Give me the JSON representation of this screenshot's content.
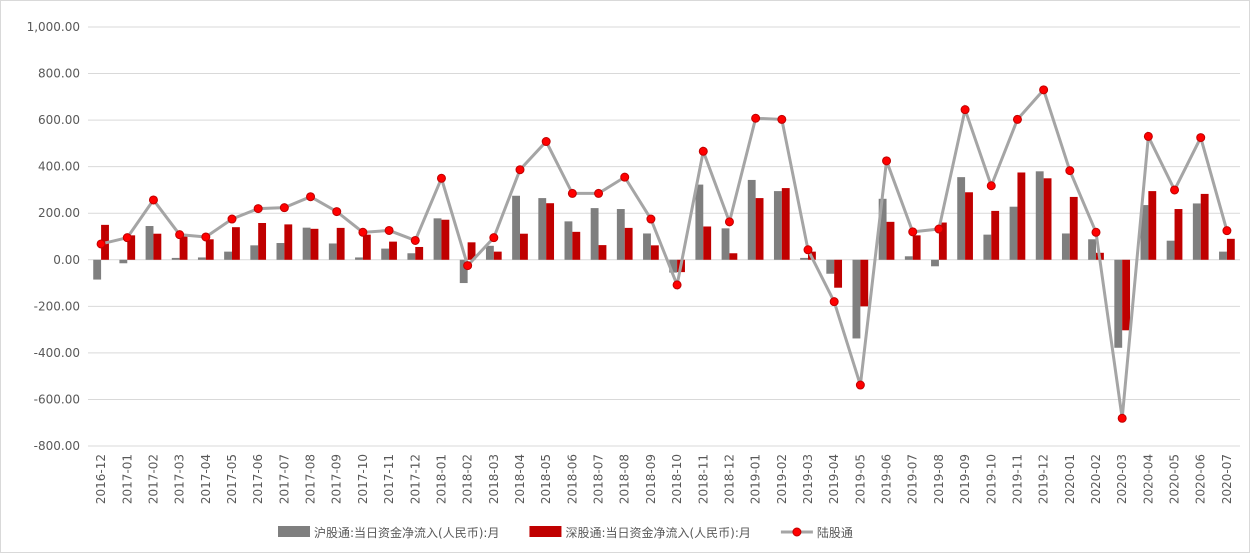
{
  "chart_data": {
    "type": "bar-line",
    "categories": [
      "2016-12",
      "2017-01",
      "2017-02",
      "2017-03",
      "2017-04",
      "2017-05",
      "2017-06",
      "2017-07",
      "2017-08",
      "2017-09",
      "2017-10",
      "2017-11",
      "2017-12",
      "2018-01",
      "2018-02",
      "2018-03",
      "2018-04",
      "2018-05",
      "2018-06",
      "2018-07",
      "2018-08",
      "2018-09",
      "2018-10",
      "2018-11",
      "2018-12",
      "2019-01",
      "2019-02",
      "2019-03",
      "2019-04",
      "2019-05",
      "2019-06",
      "2019-07",
      "2019-08",
      "2019-09",
      "2019-10",
      "2019-11",
      "2019-12",
      "2020-01",
      "2020-02",
      "2020-03",
      "2020-04",
      "2020-05",
      "2020-06",
      "2020-07"
    ],
    "series": [
      {
        "name": "沪股通:当日资金净流入(人民币):月",
        "type": "bar",
        "color": "#7f7f7f",
        "values": [
          -85,
          -15,
          145,
          8,
          10,
          35,
          62,
          72,
          138,
          70,
          10,
          48,
          28,
          178,
          -100,
          60,
          275,
          265,
          165,
          222,
          218,
          113,
          -55,
          323,
          135,
          343,
          295,
          8,
          -60,
          -338,
          262,
          15,
          -28,
          355,
          108,
          228,
          380,
          113,
          88,
          -378,
          235,
          82,
          242,
          35
        ]
      },
      {
        "name": "深股通:当日资金净流入(人民币):月",
        "type": "bar",
        "color": "#c00000",
        "values": [
          150,
          105,
          112,
          100,
          88,
          140,
          158,
          152,
          133,
          137,
          108,
          78,
          55,
          172,
          75,
          35,
          112,
          243,
          120,
          63,
          137,
          62,
          -53,
          143,
          28,
          265,
          308,
          35,
          -120,
          -200,
          163,
          105,
          160,
          290,
          210,
          375,
          350,
          270,
          30,
          -303,
          295,
          218,
          283,
          90
        ]
      },
      {
        "name": "陆股通",
        "type": "line",
        "color": "#a5a5a5",
        "marker_color": "#ff0000",
        "values": [
          68,
          95,
          257,
          108,
          98,
          175,
          220,
          224,
          271,
          207,
          118,
          126,
          83,
          350,
          -25,
          95,
          387,
          508,
          285,
          285,
          355,
          175,
          -108,
          466,
          163,
          608,
          603,
          43,
          -180,
          -538,
          425,
          120,
          132,
          645,
          318,
          603,
          730,
          383,
          118,
          -681,
          530,
          300,
          525,
          125
        ]
      }
    ],
    "ylim": [
      -800,
      1000
    ],
    "yticks": [
      {
        "value": -800,
        "label": "-800.00"
      },
      {
        "value": -600,
        "label": "-600.00"
      },
      {
        "value": -400,
        "label": "-400.00"
      },
      {
        "value": -200,
        "label": "-200.00"
      },
      {
        "value": 0,
        "label": "0.00"
      },
      {
        "value": 200,
        "label": "200.00"
      },
      {
        "value": 400,
        "label": "400.00"
      },
      {
        "value": 600,
        "label": "600.00"
      },
      {
        "value": 800,
        "label": "800.00"
      },
      {
        "value": 1000,
        "label": "1,000.00"
      }
    ],
    "grid": true,
    "legend": "bottom"
  }
}
